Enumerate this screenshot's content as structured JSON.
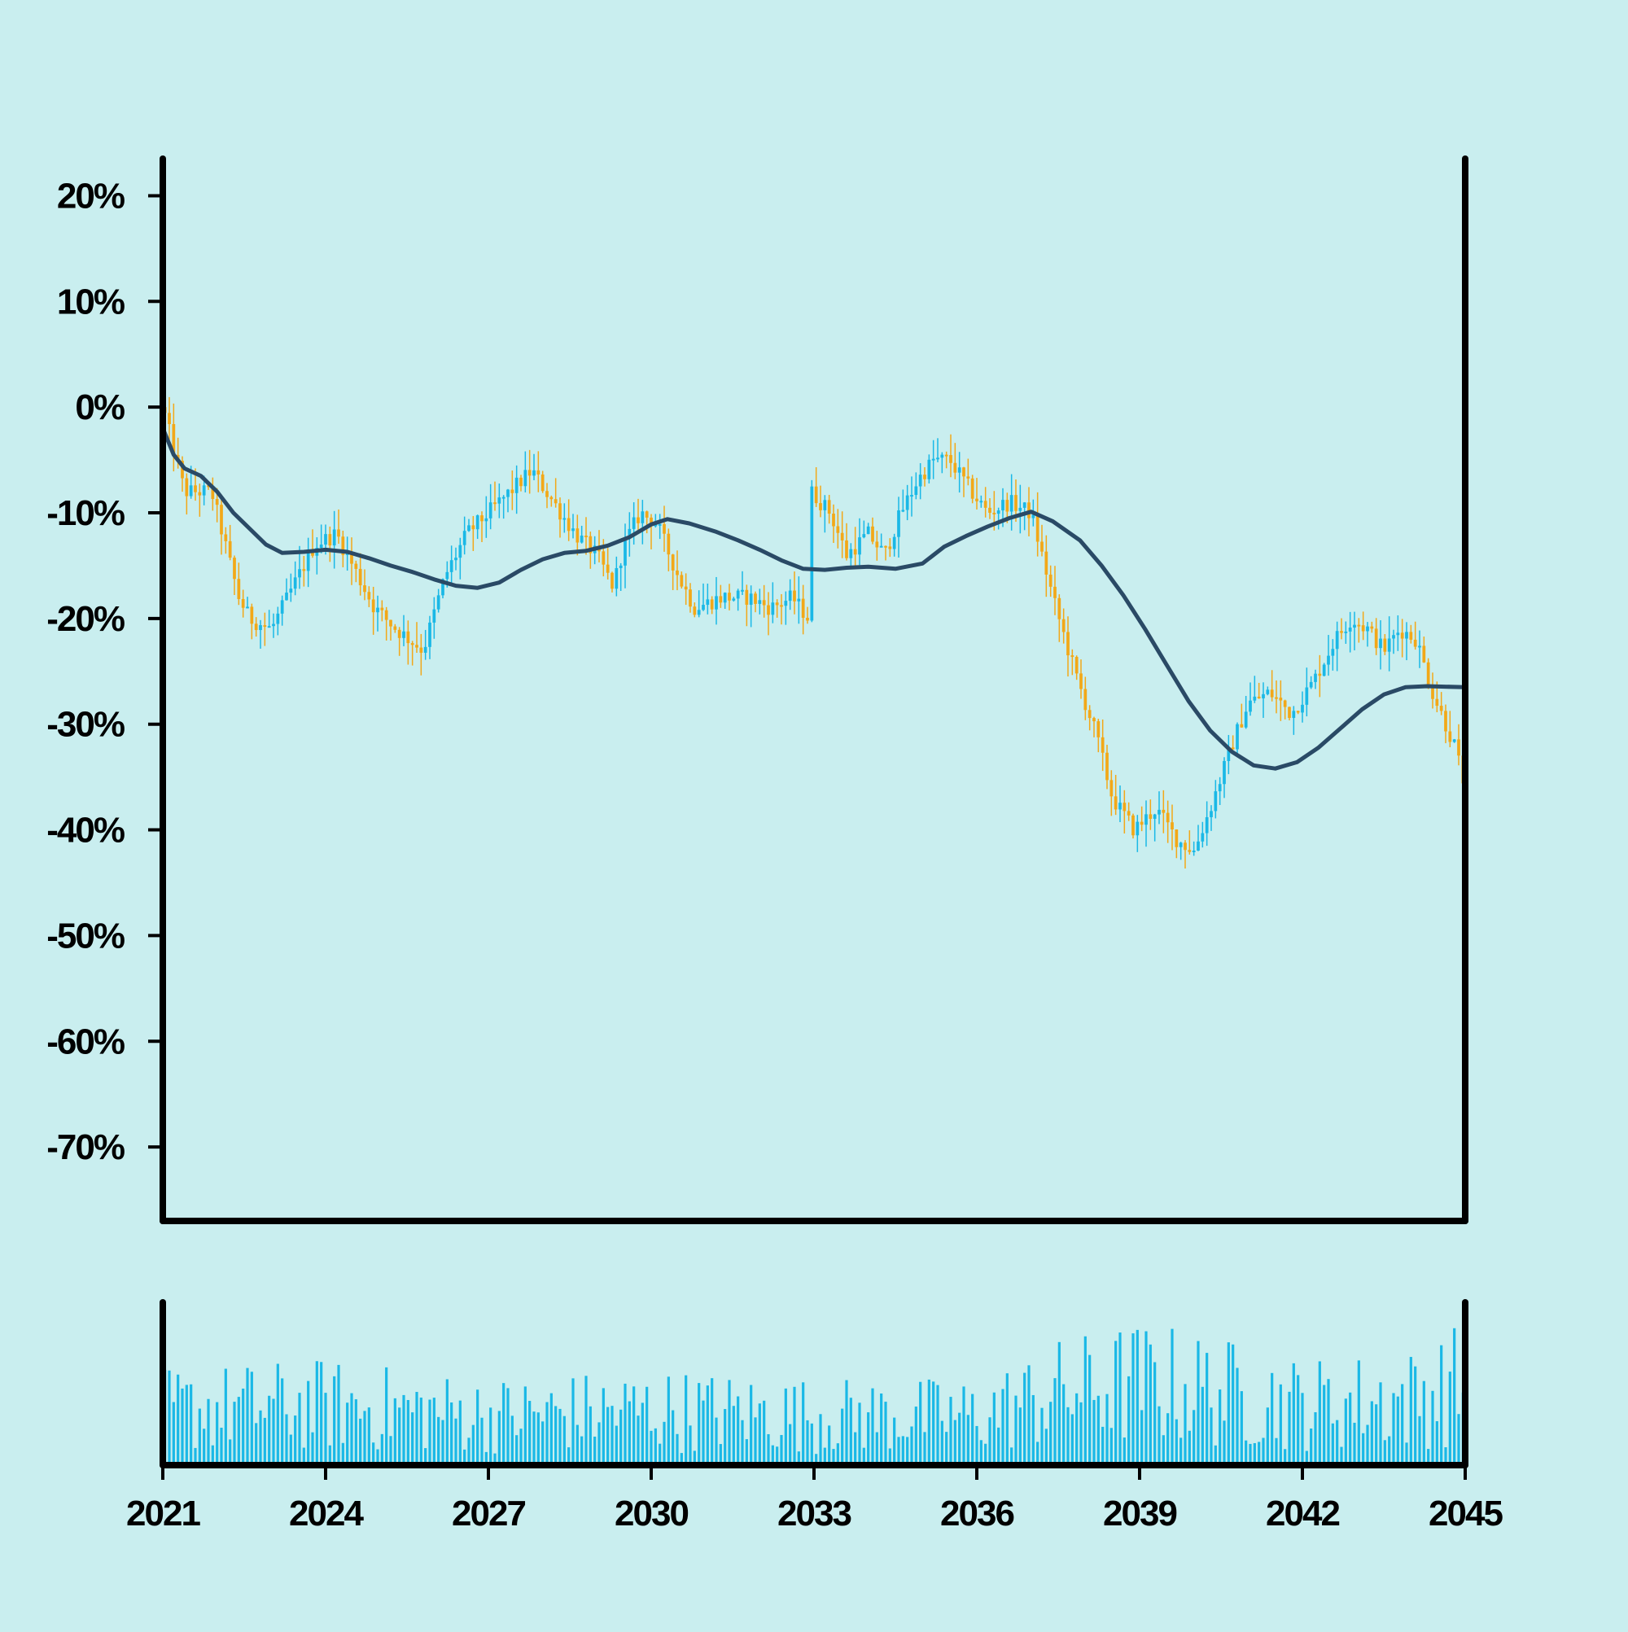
{
  "colors": {
    "background": "#c9eeef",
    "axis": "#000000",
    "up_candle": "#1ab8e6",
    "down_candle": "#f2a818",
    "moving_average": "#2a4a66",
    "volume": "#1ab8e6"
  },
  "chart_data": [
    {
      "type": "candlestick",
      "title": "",
      "xlabel": "",
      "ylabel": "",
      "y_format": "percent",
      "xlim": [
        2021,
        2045
      ],
      "ylim": [
        -77,
        23.5
      ],
      "yticks": [
        {
          "value": 20,
          "label": "20%"
        },
        {
          "value": 10,
          "label": "10%"
        },
        {
          "value": 0,
          "label": "0%"
        },
        {
          "value": -10,
          "label": "-10%"
        },
        {
          "value": -20,
          "label": "-20%"
        },
        {
          "value": -30,
          "label": "-30%"
        },
        {
          "value": -40,
          "label": "-40%"
        },
        {
          "value": -50,
          "label": "-50%"
        },
        {
          "value": -60,
          "label": "-60%"
        },
        {
          "value": -70,
          "label": "-70%"
        }
      ],
      "grid": false,
      "legend": "none",
      "series": [
        {
          "kind": "candles",
          "close_path": [
            [
              2021.0,
              0
            ],
            [
              2021.4,
              -8
            ],
            [
              2021.9,
              -8
            ],
            [
              2022.4,
              -18
            ],
            [
              2022.6,
              -20
            ],
            [
              2023.0,
              -21
            ],
            [
              2023.5,
              -16
            ],
            [
              2023.8,
              -13
            ],
            [
              2024.2,
              -12
            ],
            [
              2024.5,
              -15
            ],
            [
              2024.9,
              -19
            ],
            [
              2025.3,
              -21
            ],
            [
              2025.8,
              -23
            ],
            [
              2026.2,
              -16
            ],
            [
              2026.6,
              -12
            ],
            [
              2027.0,
              -10
            ],
            [
              2027.4,
              -8
            ],
            [
              2027.8,
              -6
            ],
            [
              2028.2,
              -9
            ],
            [
              2028.6,
              -12
            ],
            [
              2029.0,
              -14
            ],
            [
              2029.3,
              -17
            ],
            [
              2029.5,
              -13
            ],
            [
              2029.8,
              -10
            ],
            [
              2030.1,
              -11
            ],
            [
              2030.5,
              -16
            ],
            [
              2030.8,
              -19
            ],
            [
              2031.3,
              -18
            ],
            [
              2031.8,
              -18
            ],
            [
              2032.2,
              -19
            ],
            [
              2032.6,
              -18
            ],
            [
              2032.9,
              -20
            ],
            [
              2032.95,
              -8
            ],
            [
              2033.3,
              -10
            ],
            [
              2033.6,
              -14
            ],
            [
              2034.0,
              -12
            ],
            [
              2034.3,
              -14
            ],
            [
              2034.6,
              -10
            ],
            [
              2034.9,
              -7
            ],
            [
              2035.2,
              -5
            ],
            [
              2035.5,
              -5
            ],
            [
              2035.9,
              -8
            ],
            [
              2036.2,
              -10
            ],
            [
              2036.6,
              -9
            ],
            [
              2037.0,
              -10
            ],
            [
              2037.4,
              -18
            ],
            [
              2037.8,
              -25
            ],
            [
              2038.2,
              -31
            ],
            [
              2038.5,
              -37
            ],
            [
              2038.9,
              -40
            ],
            [
              2039.3,
              -38
            ],
            [
              2039.7,
              -41
            ],
            [
              2040.0,
              -42
            ],
            [
              2040.3,
              -38
            ],
            [
              2040.7,
              -32
            ],
            [
              2041.0,
              -28
            ],
            [
              2041.4,
              -27
            ],
            [
              2041.8,
              -29
            ],
            [
              2042.2,
              -26
            ],
            [
              2042.6,
              -22
            ],
            [
              2042.9,
              -20
            ],
            [
              2043.2,
              -21
            ],
            [
              2043.5,
              -23
            ],
            [
              2043.8,
              -21
            ],
            [
              2044.1,
              -22
            ],
            [
              2044.4,
              -27
            ],
            [
              2044.8,
              -32
            ],
            [
              2045.0,
              -36
            ]
          ],
          "count": 300
        },
        {
          "kind": "moving_average",
          "points": [
            [
              2021.0,
              -2
            ],
            [
              2021.2,
              -4.5
            ],
            [
              2021.4,
              -5.8
            ],
            [
              2021.7,
              -6.5
            ],
            [
              2022.0,
              -8
            ],
            [
              2022.3,
              -10
            ],
            [
              2022.6,
              -11.5
            ],
            [
              2022.9,
              -13
            ],
            [
              2023.2,
              -13.8
            ],
            [
              2023.6,
              -13.7
            ],
            [
              2024.0,
              -13.5
            ],
            [
              2024.4,
              -13.7
            ],
            [
              2024.8,
              -14.3
            ],
            [
              2025.2,
              -15
            ],
            [
              2025.6,
              -15.6
            ],
            [
              2026.0,
              -16.3
            ],
            [
              2026.4,
              -16.9
            ],
            [
              2026.8,
              -17.1
            ],
            [
              2027.2,
              -16.6
            ],
            [
              2027.6,
              -15.4
            ],
            [
              2028.0,
              -14.4
            ],
            [
              2028.4,
              -13.8
            ],
            [
              2028.8,
              -13.6
            ],
            [
              2029.2,
              -13.1
            ],
            [
              2029.6,
              -12.3
            ],
            [
              2030.0,
              -11.1
            ],
            [
              2030.3,
              -10.6
            ],
            [
              2030.7,
              -11
            ],
            [
              2031.2,
              -11.8
            ],
            [
              2031.6,
              -12.6
            ],
            [
              2032.0,
              -13.5
            ],
            [
              2032.4,
              -14.5
            ],
            [
              2032.8,
              -15.3
            ],
            [
              2033.2,
              -15.4
            ],
            [
              2033.6,
              -15.2
            ],
            [
              2034.0,
              -15.1
            ],
            [
              2034.5,
              -15.3
            ],
            [
              2035.0,
              -14.8
            ],
            [
              2035.4,
              -13.2
            ],
            [
              2035.8,
              -12.2
            ],
            [
              2036.2,
              -11.3
            ],
            [
              2036.6,
              -10.5
            ],
            [
              2037.0,
              -9.9
            ],
            [
              2037.4,
              -10.8
            ],
            [
              2037.9,
              -12.6
            ],
            [
              2038.3,
              -15
            ],
            [
              2038.7,
              -17.8
            ],
            [
              2039.1,
              -21
            ],
            [
              2039.5,
              -24.4
            ],
            [
              2039.9,
              -27.8
            ],
            [
              2040.3,
              -30.6
            ],
            [
              2040.7,
              -32.6
            ],
            [
              2041.1,
              -33.9
            ],
            [
              2041.5,
              -34.2
            ],
            [
              2041.9,
              -33.6
            ],
            [
              2042.3,
              -32.2
            ],
            [
              2042.7,
              -30.4
            ],
            [
              2043.1,
              -28.6
            ],
            [
              2043.5,
              -27.2
            ],
            [
              2043.9,
              -26.5
            ],
            [
              2044.3,
              -26.4
            ],
            [
              2045.0,
              -26.5
            ]
          ]
        }
      ]
    },
    {
      "type": "bar",
      "title": "",
      "xlabel": "",
      "ylabel": "",
      "xlim": [
        2021,
        2045
      ],
      "xticks": [
        {
          "value": 2021,
          "label": "2021"
        },
        {
          "value": 2024,
          "label": "2024"
        },
        {
          "value": 2027,
          "label": "2027"
        },
        {
          "value": 2030,
          "label": "2030"
        },
        {
          "value": 2033,
          "label": "2033"
        },
        {
          "value": 2036,
          "label": "2036"
        },
        {
          "value": 2039,
          "label": "2039"
        },
        {
          "value": 2042,
          "label": "2042"
        },
        {
          "value": 2045,
          "label": "2045"
        }
      ],
      "series": [
        {
          "name": "",
          "volume_level": [
            [
              2021,
              0.5
            ],
            [
              2024,
              0.55
            ],
            [
              2027,
              0.45
            ],
            [
              2030,
              0.5
            ],
            [
              2033,
              0.45
            ],
            [
              2036,
              0.45
            ],
            [
              2037.5,
              0.65
            ],
            [
              2039,
              0.75
            ],
            [
              2040,
              0.7
            ],
            [
              2042,
              0.55
            ],
            [
              2044,
              0.6
            ],
            [
              2045,
              0.75
            ]
          ],
          "count": 300
        }
      ]
    }
  ]
}
